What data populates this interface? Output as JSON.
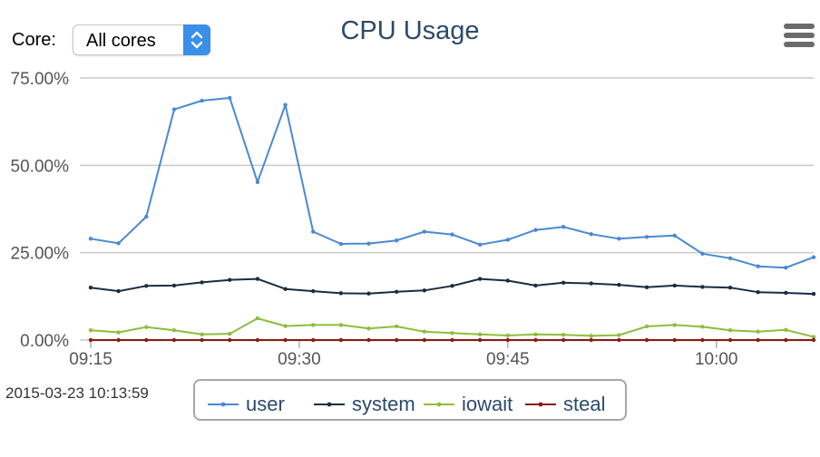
{
  "header": {
    "core_label": "Core:",
    "core_select_value": "All cores",
    "title": "CPU Usage",
    "menu_icon": "hamburger-menu-icon"
  },
  "footer": {
    "timestamp": "2015-03-23 10:13:59"
  },
  "chart_data": {
    "type": "line",
    "title": "CPU Usage",
    "x_start": "09:15",
    "x_step_minutes": 2,
    "xticks": [
      "09:15",
      "09:30",
      "09:45",
      "10:00"
    ],
    "yticks": [
      "0.00%",
      "25.00%",
      "50.00%",
      "75.00%"
    ],
    "ylim": [
      0,
      75
    ],
    "grid": true,
    "legend_placement": "bottom",
    "series": [
      {
        "name": "user",
        "color": "#4a89d4",
        "values": [
          29.0,
          27.7,
          35.3,
          66.0,
          68.5,
          69.3,
          45.2,
          67.3,
          31.0,
          27.5,
          27.6,
          28.5,
          31.0,
          30.2,
          27.3,
          28.7,
          31.5,
          32.4,
          30.3,
          29.0,
          29.5,
          29.9,
          24.7,
          23.4,
          21.1,
          20.7,
          23.7
        ]
      },
      {
        "name": "system",
        "color": "#1a2e40",
        "values": [
          15.0,
          14.0,
          15.5,
          15.6,
          16.5,
          17.2,
          17.5,
          14.6,
          14.0,
          13.4,
          13.3,
          13.8,
          14.2,
          15.5,
          17.5,
          17.0,
          15.6,
          16.4,
          16.2,
          15.8,
          15.1,
          15.6,
          15.2,
          15.0,
          13.7,
          13.5,
          13.2
        ]
      },
      {
        "name": "iowait",
        "color": "#8ebd3b",
        "values": [
          2.8,
          2.2,
          3.7,
          2.8,
          1.6,
          1.8,
          6.2,
          4.0,
          4.3,
          4.3,
          3.3,
          3.9,
          2.4,
          2.0,
          1.6,
          1.3,
          1.6,
          1.5,
          1.2,
          1.4,
          3.9,
          4.3,
          3.8,
          2.8,
          2.4,
          2.9,
          0.9
        ]
      },
      {
        "name": "steal",
        "color": "#8b1a1a",
        "values": [
          0,
          0,
          0,
          0,
          0,
          0,
          0,
          0,
          0,
          0,
          0,
          0,
          0,
          0,
          0,
          0,
          0,
          0,
          0,
          0,
          0,
          0,
          0,
          0,
          0,
          0,
          0
        ]
      }
    ]
  }
}
